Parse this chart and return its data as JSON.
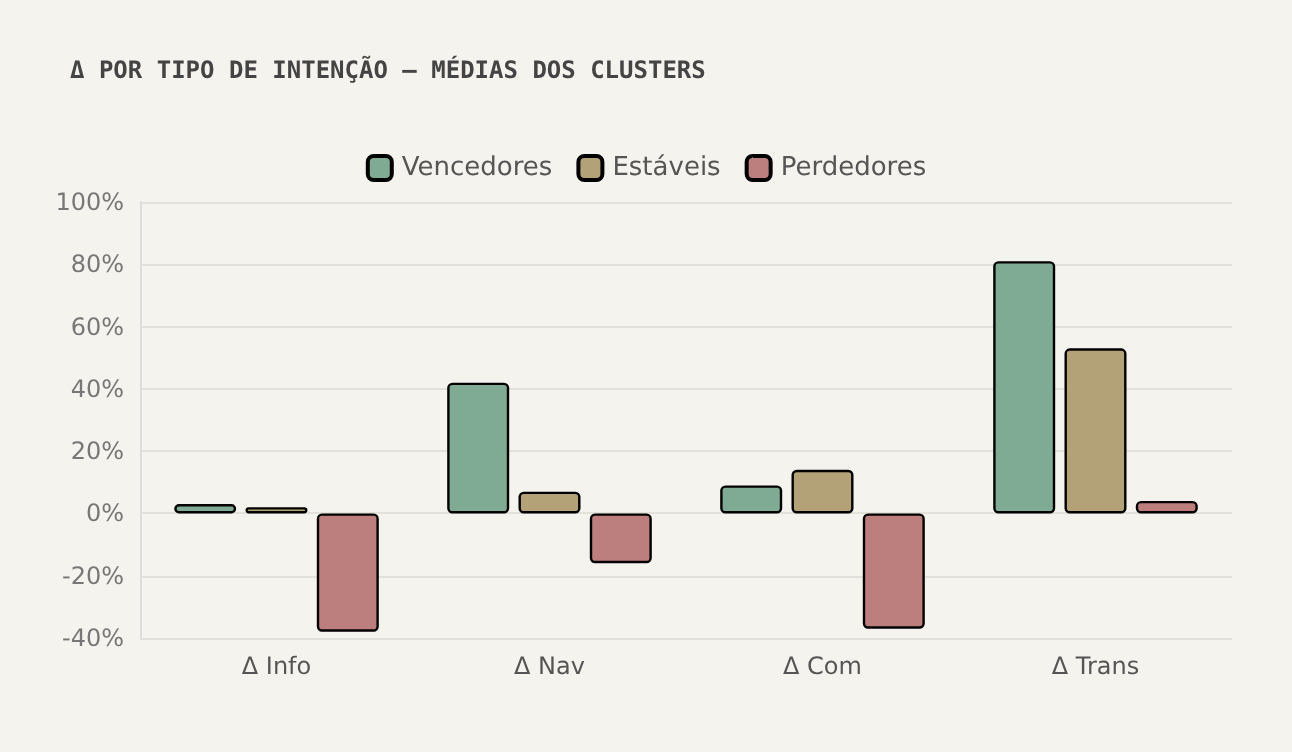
{
  "chart_data": {
    "type": "bar",
    "title": "Δ POR TIPO DE INTENÇÃO — MÉDIAS DOS CLUSTERS",
    "categories": [
      "Δ Info",
      "Δ Nav",
      "Δ Com",
      "Δ Trans"
    ],
    "series": [
      {
        "name": "Vencedores",
        "color": "#7fab94",
        "values": [
          3,
          42,
          9,
          81
        ]
      },
      {
        "name": "Estáveis",
        "color": "#b3a178",
        "values": [
          2,
          7,
          14,
          53
        ]
      },
      {
        "name": "Perdedores",
        "color": "#bc7f7e",
        "values": [
          -38,
          -16,
          -37,
          4
        ]
      }
    ],
    "ylim": [
      -40,
      100
    ],
    "yticks": [
      {
        "value": -40,
        "label": "-40%"
      },
      {
        "value": -20,
        "label": "-20%"
      },
      {
        "value": 0,
        "label": "0%"
      },
      {
        "value": 20,
        "label": "20%"
      },
      {
        "value": 40,
        "label": "40%"
      },
      {
        "value": 60,
        "label": "60%"
      },
      {
        "value": 80,
        "label": "80%"
      },
      {
        "value": 100,
        "label": "100%"
      }
    ],
    "grid": "y",
    "legend": "top"
  }
}
